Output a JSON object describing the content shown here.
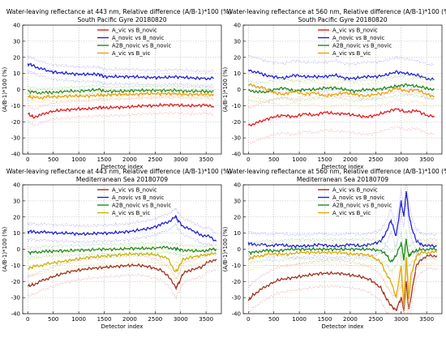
{
  "figure": {
    "background": "#ffffff"
  },
  "chart_data": [
    {
      "type": "line",
      "title": "Water-leaving reflectance at 443 nm, Relative difference (A/B-1)*100 (%)",
      "subtitle": "South Pacific Gyre  20180820",
      "xlabel": "Detector index",
      "ylabel": "(A/B-1)*100 (%)",
      "xlim": [
        -100,
        3800
      ],
      "ylim": [
        -40,
        40
      ],
      "xticks": [
        0,
        500,
        1000,
        1500,
        2000,
        2500,
        3000,
        3500
      ],
      "yticks": [
        -40,
        -30,
        -20,
        -10,
        0,
        10,
        20,
        30,
        40
      ],
      "grid": true,
      "legend_position": "top-center",
      "series": [
        {
          "name": "A_vic vs B_novic",
          "color": "#e8191b",
          "dotted_color": "#f5a0a0",
          "x": [
            0,
            100,
            250,
            400,
            600,
            800,
            1000,
            1200,
            1400,
            1500,
            1700,
            1900,
            2100,
            2300,
            2500,
            2700,
            2900,
            3100,
            3300,
            3500,
            3650
          ],
          "values": [
            -15,
            -17,
            -16,
            -14,
            -13,
            -12.5,
            -12,
            -12,
            -11,
            -11.5,
            -11,
            -11,
            -10.5,
            -10,
            -10,
            -9.5,
            -9.5,
            -10,
            -10,
            -9.5,
            -11
          ],
          "band": 5
        },
        {
          "name": "A_novic vs B_novic",
          "color": "#1f1fd8",
          "dotted_color": "#9b9bf0",
          "x": [
            0,
            100,
            250,
            400,
            600,
            800,
            1000,
            1200,
            1400,
            1500,
            1700,
            1900,
            2100,
            2300,
            2500,
            2700,
            2900,
            3100,
            3300,
            3500,
            3650
          ],
          "values": [
            16,
            15,
            13,
            11.5,
            10.5,
            10,
            9.5,
            9.5,
            9.5,
            8,
            8,
            8,
            8,
            7.5,
            7.5,
            7.5,
            8,
            7.5,
            7,
            7,
            7
          ],
          "band": 4.5
        },
        {
          "name": "A2B_novic vs B_novic",
          "color": "#1d8a1d",
          "dotted_color": "#8fd08f",
          "x": [
            0,
            100,
            250,
            400,
            600,
            800,
            1000,
            1200,
            1400,
            1500,
            1700,
            1900,
            2100,
            2300,
            2500,
            2700,
            2900,
            3100,
            3300,
            3500,
            3650
          ],
          "values": [
            -1,
            -1.5,
            -2,
            -2,
            -1.5,
            -1,
            -1,
            -0.5,
            0,
            -1,
            -1,
            -1,
            -0.5,
            -0.5,
            -0.5,
            -0.5,
            -0.5,
            -1,
            -1,
            -1,
            -1
          ],
          "band": 2.5
        },
        {
          "name": "A_vic vs B_vic",
          "color": "#f0a000",
          "dotted_color": "#f7d28a",
          "x": [
            0,
            100,
            250,
            400,
            600,
            800,
            1000,
            1200,
            1400,
            1500,
            1700,
            1900,
            2100,
            2300,
            2500,
            2700,
            2900,
            3100,
            3300,
            3500,
            3650
          ],
          "values": [
            -4,
            -5,
            -5,
            -4.5,
            -4.5,
            -4,
            -4,
            -4,
            -3.5,
            -3.5,
            -3,
            -3,
            -3,
            -2.5,
            -2.5,
            -2.5,
            -2.5,
            -3,
            -3,
            -3,
            -3
          ],
          "band": 2.5
        }
      ]
    },
    {
      "type": "line",
      "title": "Water-leaving reflectance at 560 nm, Relative difference (A/B-1)*100 (%)",
      "subtitle": "South Pacific Gyre  20180820",
      "xlabel": "Detector index",
      "ylabel": "(A/B-1)*100 (%)",
      "xlim": [
        -100,
        3800
      ],
      "ylim": [
        -40,
        40
      ],
      "xticks": [
        0,
        500,
        1000,
        1500,
        2000,
        2500,
        3000,
        3500
      ],
      "yticks": [
        -40,
        -30,
        -20,
        -10,
        0,
        10,
        20,
        30,
        40
      ],
      "grid": true,
      "legend_position": "top-center",
      "series": [
        {
          "name": "A_vic vs B_novic",
          "color": "#e8191b",
          "dotted_color": "#f5a0a0",
          "x": [
            0,
            150,
            300,
            500,
            700,
            900,
            1100,
            1300,
            1500,
            1700,
            1900,
            2100,
            2300,
            2500,
            2700,
            2900,
            3100,
            3300,
            3500,
            3650
          ],
          "values": [
            -22,
            -21,
            -19,
            -17,
            -16,
            -17,
            -15,
            -16,
            -14,
            -15,
            -15,
            -16,
            -17,
            -16,
            -14,
            -12,
            -14,
            -13,
            -16,
            -17
          ],
          "band": 11
        },
        {
          "name": "A_novic vs B_novic",
          "color": "#1f1fd8",
          "dotted_color": "#9b9bf0",
          "x": [
            0,
            150,
            300,
            500,
            700,
            900,
            1100,
            1300,
            1500,
            1700,
            1900,
            2100,
            2300,
            2500,
            2700,
            2900,
            3100,
            3300,
            3500,
            3650
          ],
          "values": [
            12,
            11,
            9,
            8,
            7,
            9,
            8,
            8,
            8,
            9,
            7,
            7,
            8,
            8,
            9,
            11,
            10,
            9,
            7,
            6
          ],
          "band": 9
        },
        {
          "name": "A2B_novic vs B_novic",
          "color": "#1d8a1d",
          "dotted_color": "#8fd08f",
          "x": [
            0,
            150,
            300,
            500,
            700,
            900,
            1100,
            1300,
            1500,
            1700,
            1900,
            2100,
            2300,
            2500,
            2700,
            2900,
            3100,
            3300,
            3500,
            3650
          ],
          "values": [
            -1,
            -1,
            -2,
            0,
            1,
            -1,
            0,
            0,
            1,
            1,
            0,
            -1,
            0,
            0,
            1,
            2,
            3,
            2,
            1,
            0
          ],
          "band": 6
        },
        {
          "name": "A_vic vs B_vic",
          "color": "#f0a000",
          "dotted_color": "#f7d28a",
          "x": [
            0,
            150,
            300,
            500,
            700,
            900,
            1100,
            1300,
            1500,
            1700,
            1900,
            2100,
            2300,
            2500,
            2700,
            2900,
            3100,
            3300,
            3500,
            3650
          ],
          "values": [
            3,
            2,
            1,
            -2,
            -3,
            -1,
            -3,
            -2,
            -4,
            -3,
            -2,
            -3,
            -4,
            -3,
            -2,
            1,
            -1,
            0,
            -3,
            -4
          ],
          "band": 7
        }
      ]
    },
    {
      "type": "line",
      "title": "Water-leaving reflectance at 443 nm, Relative difference (A/B-1)*100 (%)",
      "subtitle": "Mediterranean Sea  20180709",
      "xlabel": "Detector index",
      "ylabel": "(A/B-1)*100 (%)",
      "xlim": [
        -100,
        3800
      ],
      "ylim": [
        -40,
        40
      ],
      "xticks": [
        0,
        500,
        1000,
        1500,
        2000,
        2500,
        3000,
        3500
      ],
      "yticks": [
        -40,
        -30,
        -20,
        -10,
        0,
        10,
        20,
        30,
        40
      ],
      "grid": true,
      "legend_position": "top-center",
      "series": [
        {
          "name": "A_vic vs B_novic",
          "color": "#a0301e",
          "dotted_color": "#e8a0a0",
          "x": [
            0,
            100,
            250,
            400,
            600,
            800,
            1000,
            1200,
            1400,
            1600,
            1800,
            2000,
            2200,
            2400,
            2600,
            2750,
            2900,
            2950,
            3050,
            3200,
            3400,
            3550,
            3700
          ],
          "values": [
            -23,
            -22,
            -20,
            -18,
            -16,
            -14,
            -13,
            -12,
            -11.5,
            -11,
            -10.5,
            -10,
            -10,
            -11,
            -13,
            -16,
            -24,
            -22,
            -15,
            -13,
            -11,
            -8,
            -6
          ],
          "band": 6
        },
        {
          "name": "A_novic vs B_novic",
          "color": "#1f1fd8",
          "dotted_color": "#9b9bf0",
          "x": [
            0,
            100,
            250,
            400,
            600,
            800,
            1000,
            1200,
            1400,
            1600,
            1800,
            2000,
            2200,
            2400,
            2600,
            2750,
            2900,
            2950,
            3050,
            3200,
            3400,
            3550,
            3700
          ],
          "values": [
            11,
            11,
            10.5,
            10.5,
            10,
            10,
            9.5,
            9.5,
            10,
            10,
            10.5,
            11,
            12,
            13,
            15,
            17,
            20,
            18,
            14,
            12,
            9,
            8,
            5
          ],
          "band": 5
        },
        {
          "name": "A2B_novic vs B_novic",
          "color": "#1d8a1d",
          "dotted_color": "#8fd08f",
          "x": [
            0,
            100,
            250,
            400,
            600,
            800,
            1000,
            1200,
            1400,
            1600,
            1800,
            2000,
            2200,
            2400,
            2600,
            2750,
            2900,
            2950,
            3050,
            3200,
            3400,
            3550,
            3700
          ],
          "values": [
            -2,
            -2,
            -1.5,
            -1.5,
            -1,
            -1,
            -0.5,
            -0.5,
            0,
            0,
            0,
            0.5,
            0.5,
            0.5,
            1,
            1,
            0.5,
            0,
            -0.5,
            -1,
            -1,
            -0.5,
            0
          ],
          "band": 3
        },
        {
          "name": "A_vic vs B_vic",
          "color": "#c8b400",
          "dotted_color": "#e8e08a",
          "x": [
            0,
            100,
            250,
            400,
            600,
            800,
            1000,
            1200,
            1400,
            1600,
            1800,
            2000,
            2200,
            2400,
            2600,
            2750,
            2900,
            2950,
            3050,
            3200,
            3400,
            3550,
            3700
          ],
          "values": [
            -12,
            -11,
            -10,
            -9,
            -8,
            -7,
            -6,
            -5,
            -4.5,
            -4,
            -3.5,
            -3,
            -3,
            -3,
            -4,
            -6,
            -14,
            -12,
            -6,
            -5,
            -4,
            -3,
            -3
          ],
          "band": 5
        }
      ]
    },
    {
      "type": "line",
      "title": "Water-leaving reflectance at 560 nm, Relative difference (A/B-1)*100 (%)",
      "subtitle": "Mediterranean Sea  20180709",
      "xlabel": "Detector index",
      "ylabel": "(A/B-1)*100 (%)",
      "xlim": [
        -100,
        3800
      ],
      "ylim": [
        -40,
        40
      ],
      "xticks": [
        0,
        500,
        1000,
        1500,
        2000,
        2500,
        3000,
        3500
      ],
      "yticks": [
        -40,
        -30,
        -20,
        -10,
        0,
        10,
        20,
        30,
        40
      ],
      "grid": true,
      "legend_position": "top-center",
      "series": [
        {
          "name": "A_vic vs B_novic",
          "color": "#a0301e",
          "dotted_color": "#e8a0a0",
          "x": [
            0,
            100,
            250,
            400,
            600,
            800,
            1000,
            1200,
            1400,
            1600,
            1800,
            2000,
            2200,
            2400,
            2600,
            2700,
            2800,
            2900,
            3000,
            3050,
            3100,
            3150,
            3200,
            3300,
            3400,
            3550,
            3700
          ],
          "values": [
            -32,
            -28,
            -25,
            -22,
            -19,
            -18,
            -17,
            -16,
            -15,
            -15,
            -15,
            -16,
            -17,
            -19,
            -24,
            -30,
            -35,
            -38,
            -30,
            -38,
            -20,
            -38,
            -28,
            -10,
            -6,
            -4,
            -4
          ],
          "band": 8
        },
        {
          "name": "A_novic vs B_novic",
          "color": "#1f1fd8",
          "dotted_color": "#9b9bf0",
          "x": [
            0,
            100,
            250,
            400,
            600,
            800,
            1000,
            1200,
            1400,
            1600,
            1800,
            2000,
            2200,
            2400,
            2600,
            2700,
            2800,
            2900,
            3000,
            3050,
            3100,
            3150,
            3200,
            3300,
            3400,
            3550,
            3700
          ],
          "values": [
            4,
            3,
            3,
            2,
            3,
            2,
            2,
            2,
            3,
            2,
            2,
            3,
            2,
            3,
            5,
            10,
            18,
            8,
            30,
            20,
            36,
            22,
            14,
            5,
            3,
            2,
            2
          ],
          "band": 7
        },
        {
          "name": "A2B_novic vs B_novic",
          "color": "#1d8a1d",
          "dotted_color": "#8fd08f",
          "x": [
            0,
            100,
            250,
            400,
            600,
            800,
            1000,
            1200,
            1400,
            1600,
            1800,
            2000,
            2200,
            2400,
            2600,
            2700,
            2800,
            2900,
            3000,
            3050,
            3100,
            3150,
            3200,
            3300,
            3400,
            3550,
            3700
          ],
          "values": [
            -2,
            -2,
            -1,
            -1,
            -1,
            0,
            0,
            0,
            0,
            0,
            0,
            0,
            0,
            0,
            -1,
            -3,
            -8,
            -4,
            4,
            -6,
            6,
            -5,
            -2,
            -1,
            0,
            0,
            0
          ],
          "band": 6
        },
        {
          "name": "A_vic vs B_vic",
          "color": "#e0a800",
          "dotted_color": "#f0d890",
          "x": [
            0,
            100,
            250,
            400,
            600,
            800,
            1000,
            1200,
            1400,
            1600,
            1800,
            2000,
            2200,
            2400,
            2600,
            2700,
            2800,
            2900,
            3000,
            3050,
            3100,
            3150,
            3200,
            3300,
            3400,
            3550,
            3700
          ],
          "values": [
            -6,
            -5,
            -4,
            -3,
            -3,
            -3,
            -2,
            -2,
            -2,
            -2,
            -2,
            -3,
            -3,
            -4,
            -8,
            -15,
            -20,
            -30,
            -10,
            -35,
            -5,
            -30,
            -15,
            -4,
            -2,
            -2,
            -2
          ],
          "band": 7
        }
      ]
    }
  ]
}
